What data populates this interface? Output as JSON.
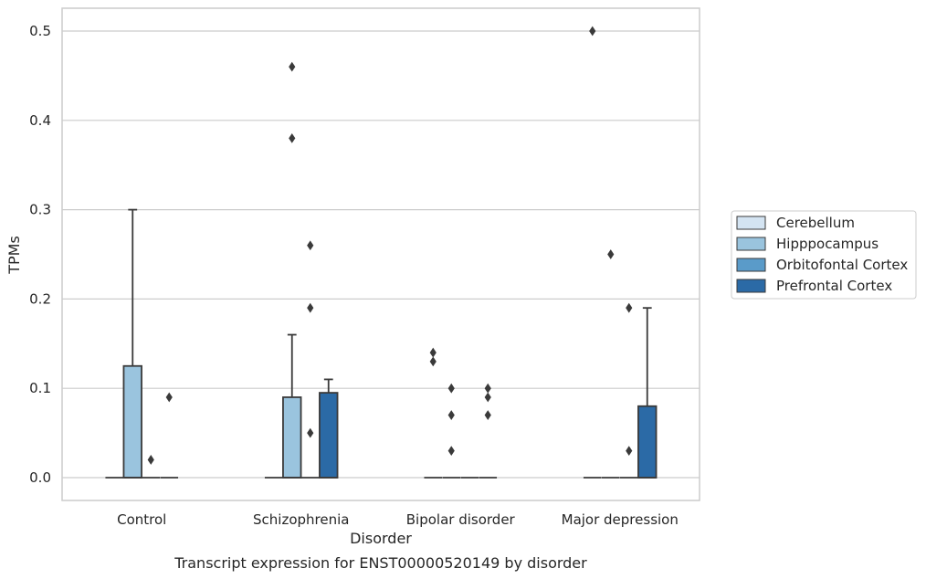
{
  "chart_data": {
    "type": "boxplot",
    "title": "",
    "caption": "Transcript expression for ENST00000520149 by disorder",
    "xlabel": "Disorder",
    "ylabel": "TPMs",
    "ylim": [
      -0.025,
      0.525
    ],
    "yticks": [
      0.0,
      0.1,
      0.2,
      0.3,
      0.4,
      0.5
    ],
    "ytick_labels": [
      "0.0",
      "0.1",
      "0.2",
      "0.3",
      "0.4",
      "0.5"
    ],
    "grid": "horizontal",
    "legend_position": "right",
    "categories": [
      "Control",
      "Schizophrenia",
      "Bipolar disorder",
      "Major depression"
    ],
    "series": [
      {
        "name": "Cerebellum",
        "color": "#d4e4f2",
        "boxes": [
          {
            "q1": 0,
            "median": 0,
            "q3": 0,
            "whislo": 0,
            "whishi": 0,
            "fliers": []
          },
          {
            "q1": 0,
            "median": 0,
            "q3": 0,
            "whislo": 0,
            "whishi": 0,
            "fliers": []
          },
          {
            "q1": 0,
            "median": 0,
            "q3": 0,
            "whislo": 0,
            "whishi": 0,
            "fliers": [
              0.14,
              0.13
            ]
          },
          {
            "q1": 0,
            "median": 0,
            "q3": 0,
            "whislo": 0,
            "whishi": 0,
            "fliers": [
              0.5
            ]
          }
        ]
      },
      {
        "name": "Hipppocampus",
        "color": "#9ac4de",
        "boxes": [
          {
            "q1": 0,
            "median": 0,
            "q3": 0.125,
            "whislo": 0,
            "whishi": 0.3,
            "fliers": []
          },
          {
            "q1": 0,
            "median": 0,
            "q3": 0.09,
            "whislo": 0,
            "whishi": 0.16,
            "fliers": [
              0.46,
              0.38
            ]
          },
          {
            "q1": 0,
            "median": 0,
            "q3": 0,
            "whislo": 0,
            "whishi": 0,
            "fliers": [
              0.1,
              0.07,
              0.03
            ]
          },
          {
            "q1": 0,
            "median": 0,
            "q3": 0,
            "whislo": 0,
            "whishi": 0,
            "fliers": [
              0.25
            ]
          }
        ]
      },
      {
        "name": "Orbitofontal Cortex",
        "color": "#5a9bc9",
        "boxes": [
          {
            "q1": 0,
            "median": 0,
            "q3": 0,
            "whislo": 0,
            "whishi": 0,
            "fliers": [
              0.02
            ]
          },
          {
            "q1": 0,
            "median": 0,
            "q3": 0,
            "whislo": 0,
            "whishi": 0,
            "fliers": [
              0.26,
              0.19,
              0.05
            ]
          },
          {
            "q1": 0,
            "median": 0,
            "q3": 0,
            "whislo": 0,
            "whishi": 0,
            "fliers": []
          },
          {
            "q1": 0,
            "median": 0,
            "q3": 0,
            "whislo": 0,
            "whishi": 0,
            "fliers": [
              0.19,
              0.03
            ]
          }
        ]
      },
      {
        "name": "Prefrontal Cortex",
        "color": "#2b6aa6",
        "boxes": [
          {
            "q1": 0,
            "median": 0,
            "q3": 0,
            "whislo": 0,
            "whishi": 0,
            "fliers": [
              0.09
            ]
          },
          {
            "q1": 0,
            "median": 0,
            "q3": 0.095,
            "whislo": 0,
            "whishi": 0.11,
            "fliers": []
          },
          {
            "q1": 0,
            "median": 0,
            "q3": 0,
            "whislo": 0,
            "whishi": 0,
            "fliers": [
              0.1,
              0.09,
              0.07
            ]
          },
          {
            "q1": 0,
            "median": 0,
            "q3": 0.08,
            "whislo": 0,
            "whishi": 0.19,
            "fliers": []
          }
        ]
      }
    ]
  }
}
